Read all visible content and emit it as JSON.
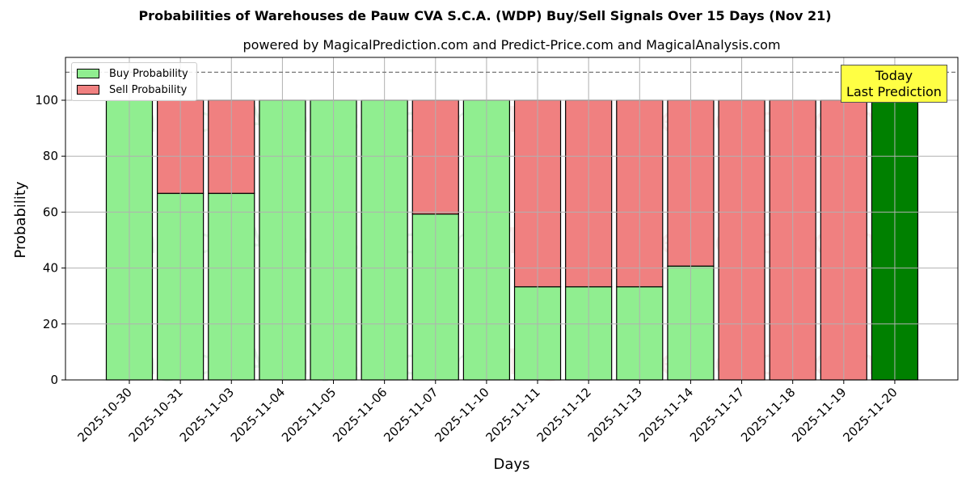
{
  "header": {
    "title": "Probabilities of Warehouses de Pauw CVA S.C.A. (WDP) Buy/Sell Signals Over 15 Days (Nov 21)",
    "subtitle": "powered by MagicalPrediction.com and Predict-Price.com and MagicalAnalysis.com"
  },
  "legend": {
    "buy_label": "Buy Probability",
    "sell_label": "Sell Probability"
  },
  "annotation": {
    "line1": "Today",
    "line2": "Last Prediction"
  },
  "watermarks": [
    "MagicalAnalysis.com",
    "Magica Prediction.com"
  ],
  "colors": {
    "buy": "#90ee90",
    "sell": "#f08080",
    "today": "#008000",
    "annotation_bg": "#ffff44"
  },
  "chart_data": {
    "type": "bar",
    "stacked": true,
    "title": "Probabilities of Warehouses de Pauw CVA S.C.A. (WDP) Buy/Sell Signals Over 15 Days (Nov 21)",
    "subtitle": "powered by MagicalPrediction.com and Predict-Price.com and MagicalAnalysis.com",
    "xlabel": "Days",
    "ylabel": "Probability",
    "ylim": [
      0,
      115
    ],
    "yticks": [
      0,
      20,
      40,
      60,
      80,
      100
    ],
    "grid": true,
    "legend_position": "upper left",
    "reference_line": {
      "y": 110,
      "style": "dashed"
    },
    "categories": [
      "2025-10-30",
      "2025-10-31",
      "2025-11-03",
      "2025-11-04",
      "2025-11-05",
      "2025-11-06",
      "2025-11-07",
      "2025-11-10",
      "2025-11-11",
      "2025-11-12",
      "2025-11-13",
      "2025-11-14",
      "2025-11-17",
      "2025-11-18",
      "2025-11-19",
      "2025-11-20"
    ],
    "series": [
      {
        "name": "Buy Probability",
        "values": [
          100,
          66.7,
          66.7,
          100,
          100,
          100,
          59.3,
          100,
          33.3,
          33.3,
          33.3,
          40.7,
          0,
          0,
          0,
          100
        ]
      },
      {
        "name": "Sell Probability",
        "values": [
          0,
          33.3,
          33.3,
          0,
          0,
          0,
          40.7,
          0,
          66.7,
          66.7,
          66.7,
          59.3,
          100,
          100,
          100,
          0
        ]
      }
    ],
    "highlight": {
      "index": 15,
      "label": "Today Last Prediction",
      "color": "#008000"
    }
  }
}
